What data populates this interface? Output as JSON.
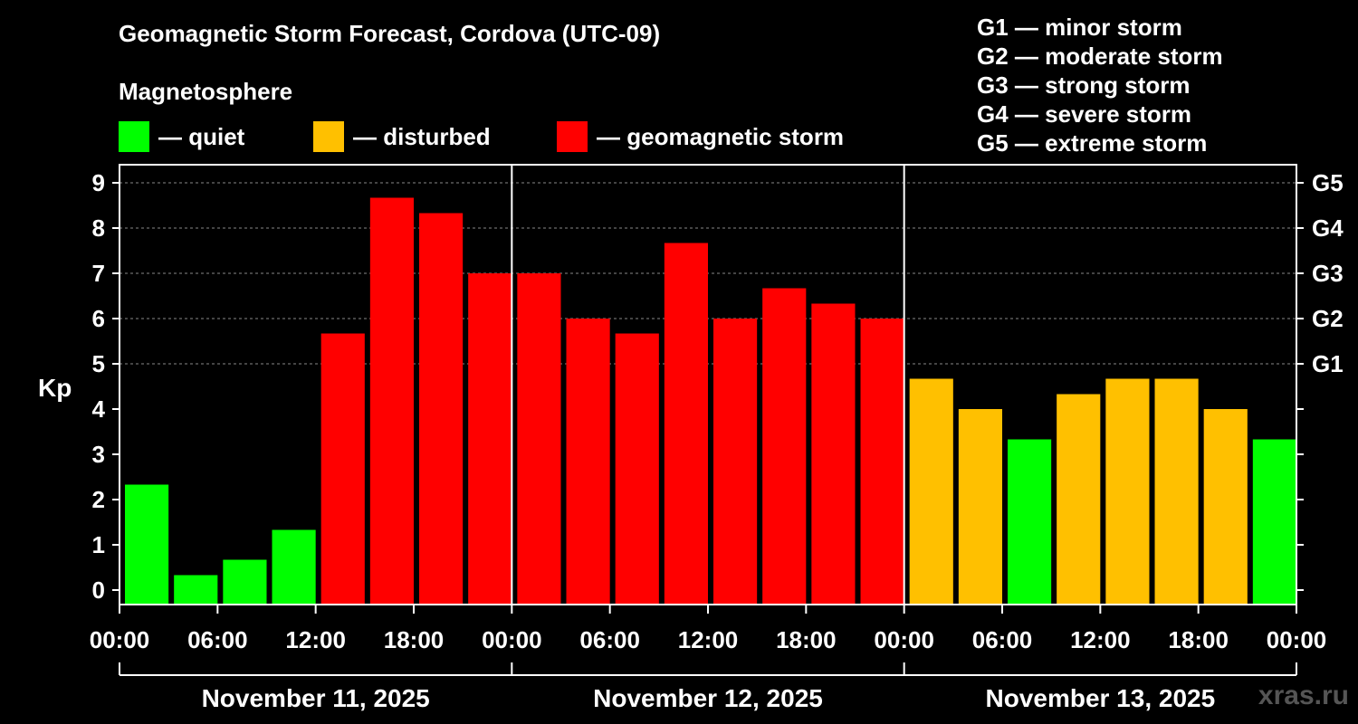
{
  "chart_data": {
    "type": "bar",
    "title": "Geomagnetic Storm Forecast, Cordova (UTC-09)",
    "subtitle": "Magnetosphere",
    "ylabel": "Kp",
    "ylim": [
      0,
      9
    ],
    "yticks": [
      "0",
      "1",
      "2",
      "3",
      "4",
      "5",
      "6",
      "7",
      "8",
      "9"
    ],
    "right_ticks": [
      {
        "kp": 5,
        "label": "G1"
      },
      {
        "kp": 6,
        "label": "G2"
      },
      {
        "kp": 7,
        "label": "G3"
      },
      {
        "kp": 8,
        "label": "G4"
      },
      {
        "kp": 9,
        "label": "G5"
      }
    ],
    "x_tick_labels": [
      "00:00",
      "06:00",
      "12:00",
      "18:00",
      "00:00",
      "06:00",
      "12:00",
      "18:00",
      "00:00",
      "06:00",
      "12:00",
      "18:00",
      "00:00"
    ],
    "days": [
      "November 11, 2025",
      "November 12, 2025",
      "November 13, 2025"
    ],
    "values": [
      2.33,
      0.33,
      0.67,
      1.33,
      5.67,
      8.67,
      8.33,
      7.0,
      7.0,
      6.0,
      5.67,
      7.67,
      6.0,
      6.67,
      6.33,
      6.0,
      4.67,
      4.0,
      3.33,
      4.33,
      4.67,
      4.67,
      4.0,
      3.33
    ],
    "categories": [
      "quiet",
      "quiet",
      "quiet",
      "quiet",
      "storm",
      "storm",
      "storm",
      "storm",
      "storm",
      "storm",
      "storm",
      "storm",
      "storm",
      "storm",
      "storm",
      "storm",
      "disturbed",
      "disturbed",
      "quiet",
      "disturbed",
      "disturbed",
      "disturbed",
      "disturbed",
      "quiet"
    ],
    "colors": {
      "quiet": "#00ff00",
      "disturbed": "#ffc000",
      "storm": "#ff0000"
    },
    "legend": [
      {
        "key": "quiet",
        "label": "— quiet"
      },
      {
        "key": "disturbed",
        "label": "— disturbed"
      },
      {
        "key": "storm",
        "label": "— geomagnetic storm"
      }
    ],
    "storm_levels": [
      "G1 — minor storm",
      "G2 — moderate storm",
      "G3 — strong storm",
      "G4 — severe storm",
      "G5 — extreme storm"
    ],
    "grid": true
  },
  "watermark": "xras.ru"
}
